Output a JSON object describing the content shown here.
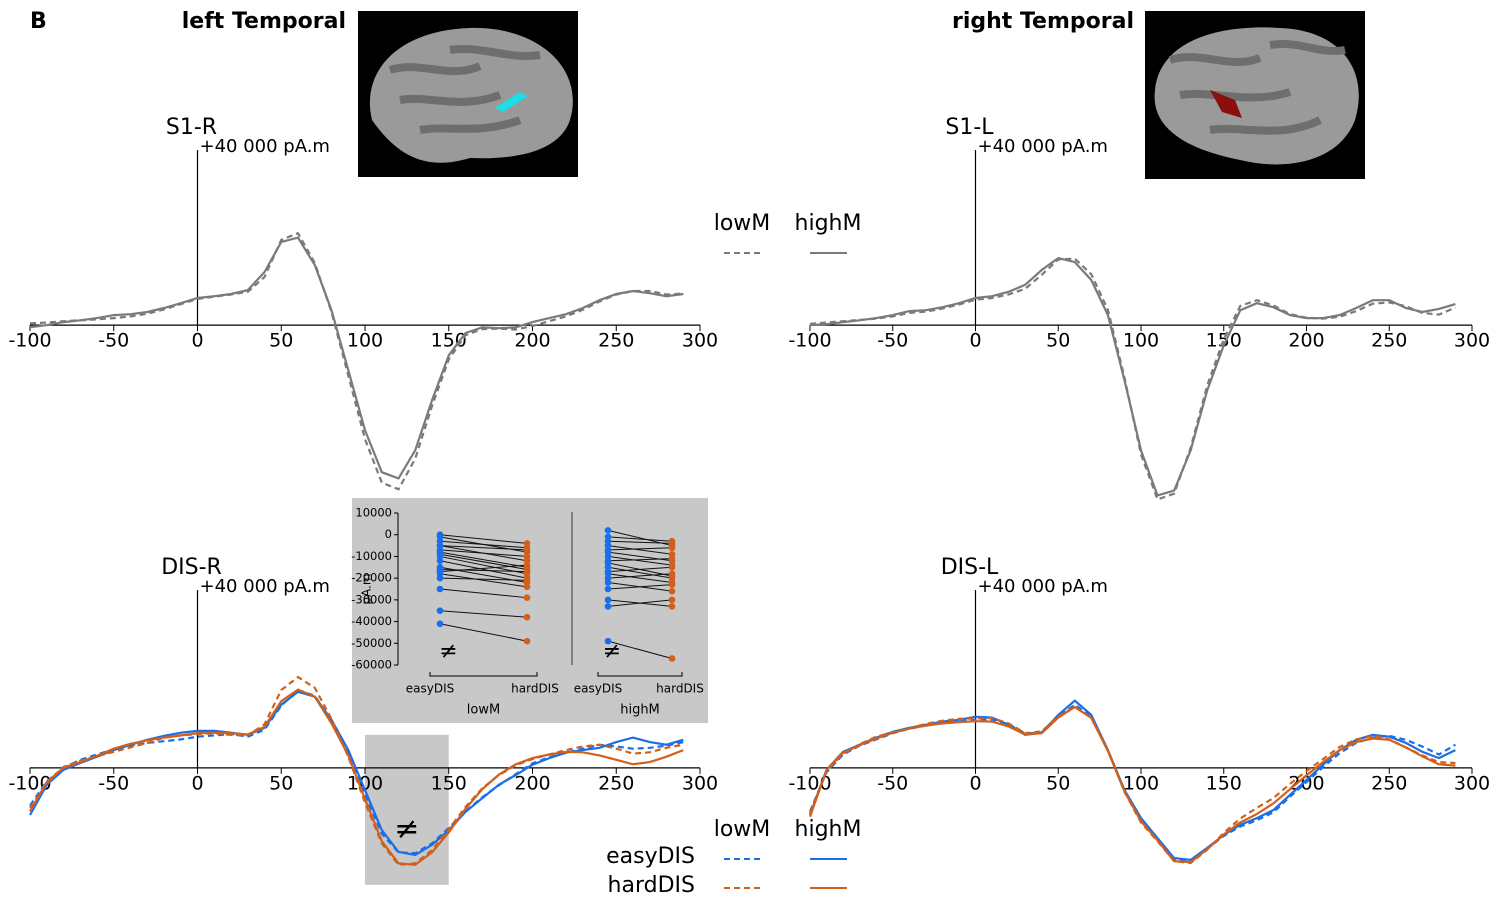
{
  "panel_label": "B",
  "region_titles": [
    "left Temporal",
    "right Temporal"
  ],
  "chart_data": [
    {
      "type": "line",
      "title": "S1-R",
      "scale_label": "+40 000  pA.m",
      "scale_value": 40000,
      "legend": true,
      "xlim": [
        -100,
        300
      ],
      "xticks": [
        -100,
        -50,
        0,
        50,
        100,
        150,
        200,
        250,
        300
      ],
      "ylim": [
        -42000,
        40000
      ],
      "x": [
        -100,
        -90,
        -80,
        -70,
        -60,
        -50,
        -40,
        -30,
        -20,
        -10,
        0,
        10,
        20,
        30,
        40,
        50,
        60,
        70,
        80,
        90,
        100,
        110,
        120,
        130,
        140,
        150,
        160,
        170,
        180,
        190,
        200,
        210,
        220,
        230,
        240,
        250,
        260,
        270,
        280,
        290
      ],
      "series": [
        {
          "name": "lowM",
          "color": "#7a7a7a",
          "dash": true,
          "values": [
            400,
            600,
            900,
            1100,
            1300,
            1600,
            2000,
            2600,
            3600,
            4800,
            6000,
            6500,
            7000,
            7600,
            11000,
            19500,
            21000,
            14200,
            3000,
            -11500,
            -26000,
            -36000,
            -37500,
            -30500,
            -18500,
            -7800,
            -2300,
            -900,
            -800,
            -1000,
            -200,
            900,
            2000,
            3500,
            5400,
            7000,
            7800,
            7800,
            7000,
            7200
          ]
        },
        {
          "name": "highM",
          "color": "#7a7a7a",
          "dash": false,
          "values": [
            -500,
            0,
            700,
            1100,
            1600,
            2300,
            2500,
            3000,
            3900,
            5000,
            6200,
            6600,
            7100,
            8000,
            12100,
            19000,
            20000,
            13700,
            3400,
            -10300,
            -24000,
            -33600,
            -35000,
            -28600,
            -17200,
            -6900,
            -1800,
            -500,
            -700,
            -500,
            700,
            1600,
            2500,
            3900,
            5700,
            7100,
            7800,
            7300,
            6600,
            7100
          ]
        }
      ]
    },
    {
      "type": "line",
      "title": "S1-L",
      "scale_label": "+40 000 pA.m",
      "scale_value": 40000,
      "xlim": [
        -100,
        300
      ],
      "xticks": [
        -100,
        -50,
        0,
        50,
        100,
        150,
        200,
        250,
        300
      ],
      "ylim": [
        -42000,
        40000
      ],
      "x": [
        -100,
        -90,
        -80,
        -70,
        -60,
        -50,
        -40,
        -30,
        -20,
        -10,
        0,
        10,
        20,
        30,
        40,
        50,
        60,
        70,
        80,
        90,
        100,
        110,
        120,
        130,
        140,
        150,
        160,
        170,
        180,
        190,
        200,
        210,
        220,
        230,
        240,
        250,
        260,
        270,
        280,
        290
      ],
      "series": [
        {
          "name": "lowM",
          "color": "#7a7a7a",
          "dash": true,
          "values": [
            300,
            600,
            900,
            1200,
            1500,
            2000,
            2800,
            3100,
            3800,
            4700,
            5800,
            6200,
            7000,
            8300,
            11500,
            15000,
            15200,
            11600,
            3500,
            -12000,
            -29500,
            -39800,
            -38500,
            -28000,
            -13800,
            -3200,
            4400,
            5700,
            4500,
            2500,
            1700,
            1500,
            1900,
            3200,
            4900,
            5200,
            4300,
            2800,
            2400,
            4000
          ]
        },
        {
          "name": "highM",
          "color": "#7a7a7a",
          "dash": false,
          "values": [
            0,
            200,
            700,
            1100,
            1600,
            2300,
            3200,
            3400,
            4100,
            5000,
            6200,
            6600,
            7600,
            9200,
            12600,
            15300,
            14400,
            10300,
            2300,
            -12600,
            -28600,
            -38900,
            -37800,
            -28600,
            -14900,
            -4600,
            3400,
            5000,
            4100,
            2300,
            1600,
            1600,
            2300,
            3900,
            5700,
            5700,
            3900,
            3000,
            3700,
            4800
          ]
        }
      ]
    },
    {
      "type": "line",
      "title": "DIS-R",
      "scale_label": "+40 000 pA.m",
      "scale_value": 40000,
      "legend": true,
      "highlight": {
        "xrange": [
          100,
          150
        ],
        "label": "≠"
      },
      "xlim": [
        -100,
        300
      ],
      "xticks": [
        -100,
        -50,
        0,
        50,
        100,
        150,
        200,
        250,
        300
      ],
      "ylim": [
        -25000,
        40000
      ],
      "x": [
        -100,
        -90,
        -80,
        -70,
        -60,
        -50,
        -40,
        -30,
        -20,
        -10,
        0,
        10,
        20,
        30,
        40,
        50,
        60,
        70,
        80,
        90,
        100,
        110,
        120,
        130,
        140,
        150,
        160,
        170,
        180,
        190,
        200,
        210,
        220,
        230,
        240,
        250,
        260,
        270,
        280,
        290
      ],
      "series": [
        {
          "name": "easyDIS",
          "group": "lowM",
          "color": "#1a6ee8",
          "dash": true,
          "values": [
            -8500,
            -3000,
            0,
            1800,
            3000,
            4200,
            5000,
            5600,
            6000,
            6400,
            7000,
            7300,
            7600,
            7000,
            8600,
            14000,
            17500,
            16200,
            10500,
            3400,
            -6000,
            -14800,
            -19000,
            -19200,
            -17000,
            -13500,
            -9800,
            -6600,
            -3900,
            -1400,
            1000,
            2400,
            3400,
            4300,
            5200,
            4800,
            4300,
            4500,
            5000,
            5800
          ]
        },
        {
          "name": "easyDIS",
          "group": "highM",
          "color": "#1a6ee8",
          "dash": false,
          "values": [
            -10600,
            -3800,
            -450,
            1100,
            2500,
            4000,
            5200,
            6300,
            7200,
            7900,
            8300,
            8300,
            7900,
            7400,
            9000,
            14200,
            17100,
            16000,
            10800,
            4000,
            -5000,
            -14000,
            -18900,
            -19600,
            -17300,
            -14000,
            -9900,
            -6800,
            -3800,
            -1600,
            700,
            2200,
            3400,
            4000,
            4500,
            5800,
            6800,
            5800,
            5200,
            6300
          ]
        },
        {
          "name": "hardDIS",
          "group": "lowM",
          "color": "#d2601a",
          "dash": true,
          "values": [
            -9000,
            -3500,
            200,
            1600,
            2600,
            3600,
            4600,
            5600,
            6800,
            7300,
            7600,
            7800,
            7400,
            7300,
            9800,
            17500,
            20400,
            18000,
            11000,
            2500,
            -7800,
            -17000,
            -21800,
            -21500,
            -18500,
            -13800,
            -8800,
            -4600,
            -1600,
            600,
            2000,
            3000,
            4000,
            4800,
            5200,
            4300,
            3200,
            3500,
            4500,
            5200
          ]
        },
        {
          "name": "hardDIS",
          "group": "highM",
          "color": "#d2601a",
          "dash": false,
          "values": [
            -9800,
            -3200,
            0,
            1300,
            2700,
            4300,
            5400,
            6200,
            6800,
            7300,
            7800,
            7900,
            7800,
            7500,
            9200,
            15000,
            17600,
            16000,
            10000,
            2800,
            -7000,
            -16500,
            -21500,
            -21800,
            -19000,
            -14500,
            -9200,
            -4800,
            -1500,
            800,
            2200,
            3000,
            3600,
            3500,
            2800,
            1800,
            800,
            1300,
            2500,
            4000
          ]
        }
      ]
    },
    {
      "type": "line",
      "title": "DIS-L",
      "scale_label": "+40 000  pA.m",
      "scale_value": 40000,
      "xlim": [
        -100,
        300
      ],
      "xticks": [
        -100,
        -50,
        0,
        50,
        100,
        150,
        200,
        250,
        300
      ],
      "ylim": [
        -25000,
        40000
      ],
      "x": [
        -100,
        -90,
        -80,
        -70,
        -60,
        -50,
        -40,
        -30,
        -20,
        -10,
        0,
        10,
        20,
        30,
        40,
        50,
        60,
        70,
        80,
        90,
        100,
        110,
        120,
        130,
        140,
        150,
        160,
        170,
        180,
        190,
        200,
        210,
        220,
        230,
        240,
        250,
        260,
        270,
        280,
        290
      ],
      "series": [
        {
          "name": "easyDIS",
          "group": "lowM",
          "color": "#1a6ee8",
          "dash": true,
          "values": [
            -9800,
            -1000,
            3000,
            5000,
            6400,
            7800,
            8800,
            9500,
            10100,
            10500,
            10800,
            10900,
            9800,
            7700,
            8000,
            11500,
            14200,
            11500,
            4000,
            -5200,
            -11800,
            -16200,
            -20600,
            -20900,
            -18200,
            -15300,
            -13200,
            -11800,
            -10000,
            -6500,
            -3200,
            200,
            3300,
            5600,
            6800,
            7200,
            6300,
            4800,
            3000,
            5200
          ]
        },
        {
          "name": "easyDIS",
          "group": "highM",
          "color": "#1a6ee8",
          "dash": false,
          "values": [
            -10600,
            -450,
            3600,
            5200,
            6800,
            8100,
            9000,
            9700,
            10400,
            10800,
            11500,
            11300,
            9700,
            7400,
            7900,
            11900,
            15100,
            11900,
            4000,
            -5000,
            -11300,
            -15800,
            -20300,
            -20700,
            -18000,
            -15100,
            -12800,
            -11300,
            -9500,
            -6100,
            -2700,
            700,
            4000,
            6300,
            7400,
            7000,
            5600,
            3600,
            2200,
            4000
          ]
        },
        {
          "name": "hardDIS",
          "group": "lowM",
          "color": "#d2601a",
          "dash": true,
          "values": [
            -10200,
            -800,
            3200,
            5300,
            7000,
            8000,
            8900,
            9900,
            10600,
            11000,
            11100,
            11200,
            10000,
            7800,
            8200,
            11600,
            13700,
            11300,
            4000,
            -5400,
            -12300,
            -16500,
            -21000,
            -21400,
            -18400,
            -14600,
            -11400,
            -9000,
            -6800,
            -3600,
            -700,
            2000,
            4700,
            6400,
            7200,
            6400,
            4600,
            2800,
            1300,
            1100
          ]
        },
        {
          "name": "hardDIS",
          "group": "highM",
          "color": "#d2601a",
          "dash": false,
          "values": [
            -11000,
            -500,
            3400,
            5100,
            6600,
            7900,
            8800,
            9500,
            10000,
            10300,
            10500,
            10400,
            9300,
            7500,
            7800,
            11300,
            13700,
            11200,
            3800,
            -5300,
            -12000,
            -16300,
            -21000,
            -21200,
            -18300,
            -15000,
            -12300,
            -10400,
            -8000,
            -4800,
            -1700,
            1300,
            4000,
            5800,
            6600,
            6300,
            4600,
            2600,
            800,
            500
          ]
        }
      ]
    },
    {
      "type": "paired",
      "y_label": "pA.m",
      "ylim": [
        -60000,
        10000
      ],
      "yticks": [
        10000,
        0,
        -10000,
        -20000,
        -30000,
        -40000,
        -50000,
        -60000
      ],
      "groups": [
        {
          "name": "lowM",
          "annotation": "≠",
          "series": [
            {
              "name": "easyDIS",
              "color": "#1a6ee8",
              "values": [
                0,
                -1000,
                -3000,
                -5000,
                -7000,
                -8000,
                -10000,
                -12000,
                -15000,
                -16000,
                -17000,
                -18000,
                -20000,
                -25000,
                -35000,
                -41000,
                -5000,
                -9000
              ]
            },
            {
              "name": "hardDIS",
              "color": "#d2601a",
              "values": [
                -4000,
                -8000,
                -6000,
                -12000,
                -10000,
                -15000,
                -18000,
                -20000,
                -22000,
                -17000,
                -14000,
                -24000,
                -21000,
                -29000,
                -38000,
                -49000,
                -7000,
                -16000
              ]
            }
          ]
        },
        {
          "name": "highM",
          "annotation": "≠",
          "series": [
            {
              "name": "easyDIS",
              "color": "#1a6ee8",
              "values": [
                2000,
                -3000,
                -5000,
                -7000,
                -10000,
                -12000,
                -15000,
                -17000,
                -18000,
                -20000,
                -22000,
                -25000,
                -30000,
                -33000,
                -49000,
                -1000,
                -8000,
                -13000
              ]
            },
            {
              "name": "hardDIS",
              "color": "#d2601a",
              "values": [
                -5000,
                -4000,
                -9000,
                -6000,
                -14000,
                -11000,
                -20000,
                -15000,
                -22000,
                -18000,
                -26000,
                -23000,
                -33000,
                -30000,
                -57000,
                -3000,
                -12000,
                -19000
              ]
            }
          ]
        }
      ]
    }
  ]
}
